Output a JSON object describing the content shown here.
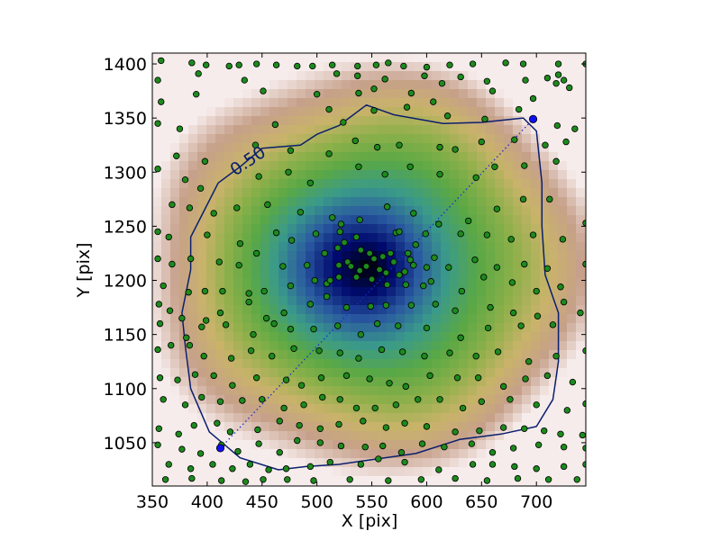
{
  "chart_data": {
    "type": "scatter",
    "subtype": "density-map-with-scatter",
    "xlabel": "X [pix]",
    "ylabel": "Y [pix]",
    "xlim": [
      350,
      745
    ],
    "ylim": [
      1010,
      1410
    ],
    "xticks": [
      350,
      400,
      450,
      500,
      550,
      600,
      650,
      700
    ],
    "yticks": [
      1050,
      1100,
      1150,
      1200,
      1250,
      1300,
      1350,
      1400
    ],
    "xtick_labels": [
      "350",
      "400",
      "450",
      "500",
      "550",
      "600",
      "650",
      "700"
    ],
    "ytick_labels": [
      "1050",
      "1100",
      "1150",
      "1200",
      "1250",
      "1300",
      "1350",
      "1400"
    ],
    "colormap": [
      "#000000",
      "#000a6e",
      "#2a5aa0",
      "#3a9a8a",
      "#5aa845",
      "#8eb04a",
      "#c9b36a",
      "#c6a08a",
      "#f7ecec"
    ],
    "density_peak": {
      "x": 548,
      "y": 1212
    },
    "contour": {
      "level_label": "0.50",
      "color": "#0a1f6e",
      "label_at": {
        "x": 440,
        "y": 1306
      },
      "path": [
        [
          520,
          1343
        ],
        [
          545,
          1362
        ],
        [
          570,
          1353
        ],
        [
          615,
          1345
        ],
        [
          650,
          1346
        ],
        [
          688,
          1350
        ],
        [
          700,
          1338
        ],
        [
          705,
          1290
        ],
        [
          705,
          1250
        ],
        [
          708,
          1205
        ],
        [
          720,
          1170
        ],
        [
          720,
          1125
        ],
        [
          715,
          1090
        ],
        [
          700,
          1065
        ],
        [
          668,
          1058
        ],
        [
          630,
          1053
        ],
        [
          590,
          1040
        ],
        [
          555,
          1035
        ],
        [
          520,
          1030
        ],
        [
          490,
          1028
        ],
        [
          465,
          1025
        ],
        [
          430,
          1036
        ],
        [
          402,
          1060
        ],
        [
          385,
          1100
        ],
        [
          380,
          1140
        ],
        [
          377,
          1170
        ],
        [
          385,
          1210
        ],
        [
          385,
          1240
        ],
        [
          395,
          1260
        ],
        [
          410,
          1290
        ],
        [
          430,
          1305
        ],
        [
          450,
          1322
        ],
        [
          485,
          1325
        ],
        [
          500,
          1335
        ]
      ]
    },
    "diagonal_markers": [
      {
        "x": 412,
        "y": 1045
      },
      {
        "x": 697,
        "y": 1349
      }
    ],
    "point_color": "#1d8a1d",
    "points": [
      [
        358,
        1403
      ],
      [
        386,
        1401
      ],
      [
        399,
        1399
      ],
      [
        420,
        1398
      ],
      [
        429,
        1399
      ],
      [
        445,
        1400
      ],
      [
        463,
        1399
      ],
      [
        482,
        1398
      ],
      [
        496,
        1398
      ],
      [
        514,
        1399
      ],
      [
        537,
        1398
      ],
      [
        554,
        1399
      ],
      [
        565,
        1401
      ],
      [
        579,
        1398
      ],
      [
        600,
        1397
      ],
      [
        621,
        1399
      ],
      [
        642,
        1400
      ],
      [
        672,
        1401
      ],
      [
        688,
        1400
      ],
      [
        720,
        1400
      ],
      [
        745,
        1400
      ],
      [
        355,
        1385
      ],
      [
        392,
        1391
      ],
      [
        434,
        1385
      ],
      [
        518,
        1391
      ],
      [
        537,
        1389
      ],
      [
        562,
        1386
      ],
      [
        598,
        1389
      ],
      [
        631,
        1388
      ],
      [
        655,
        1384
      ],
      [
        690,
        1385
      ],
      [
        710,
        1387
      ],
      [
        725,
        1385
      ],
      [
        720,
        1390
      ],
      [
        358,
        1365
      ],
      [
        390,
        1372
      ],
      [
        451,
        1375
      ],
      [
        500,
        1372
      ],
      [
        538,
        1373
      ],
      [
        552,
        1377
      ],
      [
        586,
        1373
      ],
      [
        606,
        1365
      ],
      [
        614,
        1382
      ],
      [
        660,
        1375
      ],
      [
        697,
        1368
      ],
      [
        718,
        1382
      ],
      [
        730,
        1378
      ],
      [
        355,
        1345
      ],
      [
        375,
        1340
      ],
      [
        462,
        1344
      ],
      [
        511,
        1358
      ],
      [
        524,
        1346
      ],
      [
        552,
        1357
      ],
      [
        582,
        1360
      ],
      [
        619,
        1352
      ],
      [
        653,
        1349
      ],
      [
        684,
        1358
      ],
      [
        719,
        1343
      ],
      [
        735,
        1340
      ],
      [
        372,
        1315
      ],
      [
        398,
        1310
      ],
      [
        444,
        1325
      ],
      [
        476,
        1320
      ],
      [
        511,
        1317
      ],
      [
        535,
        1329
      ],
      [
        555,
        1323
      ],
      [
        575,
        1325
      ],
      [
        612,
        1323
      ],
      [
        626,
        1321
      ],
      [
        650,
        1328
      ],
      [
        680,
        1330
      ],
      [
        708,
        1325
      ],
      [
        727,
        1328
      ],
      [
        355,
        1303
      ],
      [
        380,
        1293
      ],
      [
        394,
        1285
      ],
      [
        447,
        1296
      ],
      [
        474,
        1300
      ],
      [
        494,
        1290
      ],
      [
        538,
        1305
      ],
      [
        562,
        1298
      ],
      [
        585,
        1305
      ],
      [
        612,
        1298
      ],
      [
        645,
        1295
      ],
      [
        662,
        1305
      ],
      [
        689,
        1306
      ],
      [
        718,
        1310
      ],
      [
        368,
        1270
      ],
      [
        384,
        1267
      ],
      [
        406,
        1262
      ],
      [
        427,
        1267
      ],
      [
        455,
        1270
      ],
      [
        485,
        1263
      ],
      [
        514,
        1258
      ],
      [
        522,
        1252
      ],
      [
        539,
        1256
      ],
      [
        564,
        1268
      ],
      [
        588,
        1262
      ],
      [
        611,
        1252
      ],
      [
        638,
        1255
      ],
      [
        664,
        1266
      ],
      [
        688,
        1275
      ],
      [
        712,
        1275
      ],
      [
        745,
        1253
      ],
      [
        355,
        1245
      ],
      [
        365,
        1240
      ],
      [
        400,
        1242
      ],
      [
        430,
        1234
      ],
      [
        463,
        1244
      ],
      [
        477,
        1237
      ],
      [
        499,
        1243
      ],
      [
        521,
        1245
      ],
      [
        536,
        1240
      ],
      [
        572,
        1244
      ],
      [
        599,
        1243
      ],
      [
        631,
        1243
      ],
      [
        655,
        1242
      ],
      [
        677,
        1238
      ],
      [
        697,
        1242
      ],
      [
        724,
        1238
      ],
      [
        355,
        1220
      ],
      [
        368,
        1215
      ],
      [
        385,
        1220
      ],
      [
        411,
        1217
      ],
      [
        429,
        1214
      ],
      [
        445,
        1225
      ],
      [
        469,
        1213
      ],
      [
        491,
        1214
      ],
      [
        507,
        1225
      ],
      [
        519,
        1230
      ],
      [
        528,
        1217
      ],
      [
        539,
        1209
      ],
      [
        548,
        1225
      ],
      [
        560,
        1222
      ],
      [
        570,
        1217
      ],
      [
        585,
        1219
      ],
      [
        607,
        1221
      ],
      [
        620,
        1212
      ],
      [
        644,
        1219
      ],
      [
        664,
        1212
      ],
      [
        689,
        1215
      ],
      [
        710,
        1211
      ],
      [
        745,
        1215
      ],
      [
        360,
        1195
      ],
      [
        383,
        1189
      ],
      [
        398,
        1190
      ],
      [
        414,
        1190
      ],
      [
        438,
        1188
      ],
      [
        452,
        1190
      ],
      [
        476,
        1195
      ],
      [
        498,
        1200
      ],
      [
        509,
        1197
      ],
      [
        520,
        1203
      ],
      [
        536,
        1203
      ],
      [
        550,
        1201
      ],
      [
        564,
        1196
      ],
      [
        581,
        1196
      ],
      [
        604,
        1199
      ],
      [
        632,
        1190
      ],
      [
        652,
        1203
      ],
      [
        678,
        1198
      ],
      [
        700,
        1190
      ],
      [
        722,
        1194
      ],
      [
        356,
        1178
      ],
      [
        366,
        1172
      ],
      [
        377,
        1165
      ],
      [
        399,
        1163
      ],
      [
        412,
        1170
      ],
      [
        438,
        1180
      ],
      [
        454,
        1165
      ],
      [
        470,
        1170
      ],
      [
        494,
        1178
      ],
      [
        509,
        1185
      ],
      [
        527,
        1175
      ],
      [
        549,
        1176
      ],
      [
        563,
        1177
      ],
      [
        586,
        1177
      ],
      [
        608,
        1178
      ],
      [
        626,
        1172
      ],
      [
        658,
        1175
      ],
      [
        679,
        1170
      ],
      [
        701,
        1167
      ],
      [
        725,
        1180
      ],
      [
        740,
        1170
      ],
      [
        357,
        1160
      ],
      [
        381,
        1147
      ],
      [
        395,
        1157
      ],
      [
        417,
        1159
      ],
      [
        442,
        1150
      ],
      [
        461,
        1160
      ],
      [
        476,
        1155
      ],
      [
        497,
        1155
      ],
      [
        519,
        1158
      ],
      [
        540,
        1150
      ],
      [
        555,
        1160
      ],
      [
        574,
        1158
      ],
      [
        600,
        1156
      ],
      [
        631,
        1147
      ],
      [
        656,
        1156
      ],
      [
        686,
        1158
      ],
      [
        715,
        1159
      ],
      [
        355,
        1136
      ],
      [
        367,
        1140
      ],
      [
        384,
        1140
      ],
      [
        397,
        1130
      ],
      [
        422,
        1128
      ],
      [
        440,
        1135
      ],
      [
        459,
        1130
      ],
      [
        479,
        1137
      ],
      [
        502,
        1135
      ],
      [
        521,
        1133
      ],
      [
        538,
        1128
      ],
      [
        559,
        1136
      ],
      [
        578,
        1134
      ],
      [
        598,
        1130
      ],
      [
        621,
        1133
      ],
      [
        645,
        1130
      ],
      [
        665,
        1134
      ],
      [
        693,
        1125
      ],
      [
        718,
        1130
      ],
      [
        745,
        1135
      ],
      [
        357,
        1110
      ],
      [
        373,
        1108
      ],
      [
        389,
        1113
      ],
      [
        406,
        1112
      ],
      [
        423,
        1103
      ],
      [
        445,
        1110
      ],
      [
        472,
        1108
      ],
      [
        486,
        1103
      ],
      [
        504,
        1110
      ],
      [
        527,
        1112
      ],
      [
        548,
        1109
      ],
      [
        566,
        1105
      ],
      [
        581,
        1102
      ],
      [
        603,
        1112
      ],
      [
        628,
        1110
      ],
      [
        647,
        1110
      ],
      [
        670,
        1102
      ],
      [
        690,
        1109
      ],
      [
        710,
        1112
      ],
      [
        733,
        1106
      ],
      [
        360,
        1090
      ],
      [
        380,
        1085
      ],
      [
        395,
        1092
      ],
      [
        412,
        1088
      ],
      [
        432,
        1089
      ],
      [
        450,
        1090
      ],
      [
        470,
        1082
      ],
      [
        488,
        1085
      ],
      [
        505,
        1092
      ],
      [
        521,
        1090
      ],
      [
        536,
        1082
      ],
      [
        553,
        1082
      ],
      [
        572,
        1085
      ],
      [
        592,
        1090
      ],
      [
        612,
        1090
      ],
      [
        633,
        1082
      ],
      [
        650,
        1088
      ],
      [
        676,
        1090
      ],
      [
        700,
        1085
      ],
      [
        728,
        1080
      ],
      [
        745,
        1086
      ],
      [
        356,
        1063
      ],
      [
        374,
        1058
      ],
      [
        388,
        1066
      ],
      [
        409,
        1068
      ],
      [
        421,
        1060
      ],
      [
        446,
        1062
      ],
      [
        466,
        1070
      ],
      [
        484,
        1066
      ],
      [
        503,
        1063
      ],
      [
        520,
        1067
      ],
      [
        542,
        1070
      ],
      [
        563,
        1064
      ],
      [
        580,
        1068
      ],
      [
        600,
        1065
      ],
      [
        626,
        1060
      ],
      [
        648,
        1061
      ],
      [
        670,
        1064
      ],
      [
        689,
        1063
      ],
      [
        707,
        1061
      ],
      [
        722,
        1058
      ],
      [
        742,
        1057
      ],
      [
        355,
        1048
      ],
      [
        377,
        1044
      ],
      [
        394,
        1040
      ],
      [
        413,
        1048
      ],
      [
        428,
        1042
      ],
      [
        447,
        1049
      ],
      [
        466,
        1041
      ],
      [
        482,
        1052
      ],
      [
        503,
        1050
      ],
      [
        522,
        1047
      ],
      [
        544,
        1046
      ],
      [
        560,
        1047
      ],
      [
        577,
        1041
      ],
      [
        596,
        1049
      ],
      [
        616,
        1046
      ],
      [
        641,
        1049
      ],
      [
        660,
        1041
      ],
      [
        679,
        1045
      ],
      [
        702,
        1048
      ],
      [
        725,
        1046
      ],
      [
        745,
        1045
      ],
      [
        365,
        1030
      ],
      [
        385,
        1026
      ],
      [
        405,
        1030
      ],
      [
        423,
        1026
      ],
      [
        439,
        1030
      ],
      [
        456,
        1025
      ],
      [
        472,
        1026
      ],
      [
        494,
        1028
      ],
      [
        512,
        1032
      ],
      [
        540,
        1030
      ],
      [
        556,
        1035
      ],
      [
        580,
        1032
      ],
      [
        611,
        1025
      ],
      [
        642,
        1030
      ],
      [
        660,
        1030
      ],
      [
        680,
        1028
      ],
      [
        700,
        1026
      ],
      [
        725,
        1028
      ],
      [
        745,
        1030
      ],
      [
        362,
        1016
      ],
      [
        386,
        1017
      ],
      [
        413,
        1015
      ],
      [
        435,
        1014
      ],
      [
        451,
        1016
      ],
      [
        473,
        1016
      ],
      [
        497,
        1015
      ],
      [
        530,
        1016
      ],
      [
        565,
        1015
      ],
      [
        595,
        1016
      ],
      [
        626,
        1017
      ],
      [
        655,
        1015
      ],
      [
        683,
        1017
      ],
      [
        711,
        1016
      ],
      [
        737,
        1016
      ],
      [
        545,
        1213
      ],
      [
        557,
        1210
      ],
      [
        563,
        1207
      ],
      [
        552,
        1220
      ],
      [
        531,
        1213
      ],
      [
        567,
        1225
      ],
      [
        580,
        1208
      ],
      [
        588,
        1214
      ],
      [
        540,
        1228
      ],
      [
        520,
        1214
      ],
      [
        575,
        1205
      ],
      [
        590,
        1233
      ],
      [
        600,
        1212
      ],
      [
        525,
        1235
      ],
      [
        512,
        1200
      ],
      [
        597,
        1195
      ],
      [
        575,
        1245
      ],
      [
        583,
        1225
      ]
    ]
  }
}
